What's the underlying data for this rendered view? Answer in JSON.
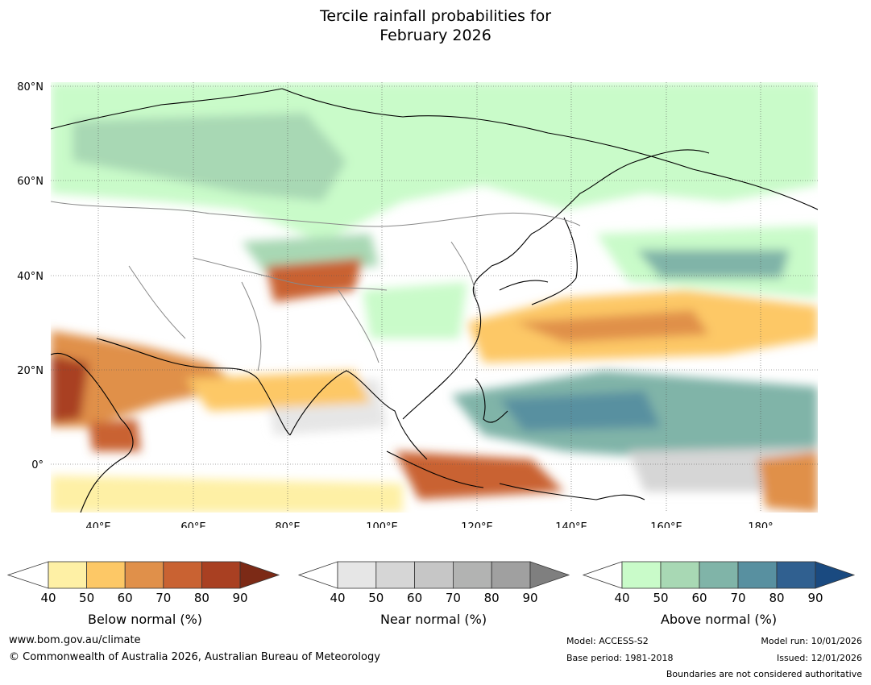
{
  "title_line1": "Tercile rainfall probabilities for",
  "title_line2": "February 2026",
  "map": {
    "lat_labels": [
      "80°N",
      "60°N",
      "40°N",
      "20°N",
      "0°"
    ],
    "lon_labels": [
      "40°E",
      "60°E",
      "80°E",
      "100°E",
      "120°E",
      "140°E",
      "160°E",
      "180°"
    ],
    "ocean_color": "#ffffff",
    "coast_color": "#000000",
    "border_color": "#888888"
  },
  "colorbars": [
    {
      "label": "Below normal (%)",
      "ticks": [
        "40",
        "50",
        "60",
        "70",
        "80",
        "90"
      ],
      "colors": [
        "#fef0a5",
        "#fdc866",
        "#e0904a",
        "#c96232",
        "#a94022",
        "#7c2a16"
      ]
    },
    {
      "label": "Near normal (%)",
      "ticks": [
        "40",
        "50",
        "60",
        "70",
        "80",
        "90"
      ],
      "colors": [
        "#e6e6e6",
        "#d6d6d6",
        "#c6c6c6",
        "#b2b3b2",
        "#a0a0a0",
        "#7f7f7f"
      ]
    },
    {
      "label": "Above normal (%)",
      "ticks": [
        "40",
        "50",
        "60",
        "70",
        "80",
        "90"
      ],
      "colors": [
        "#c9fbc9",
        "#a8d8b4",
        "#80b4a8",
        "#5890a0",
        "#306090",
        "#1a4a80"
      ]
    }
  ],
  "footer": {
    "website": "www.bom.gov.au/climate",
    "copyright": "© Commonwealth of Australia 2026, Australian Bureau of Meteorology",
    "model": "Model: ACCESS-S2",
    "base_period": "Base period: 1981-2018",
    "model_run": "Model run: 10/01/2026",
    "issued": "Issued: 12/01/2026",
    "boundaries": "Boundaries are not considered authoritative"
  }
}
